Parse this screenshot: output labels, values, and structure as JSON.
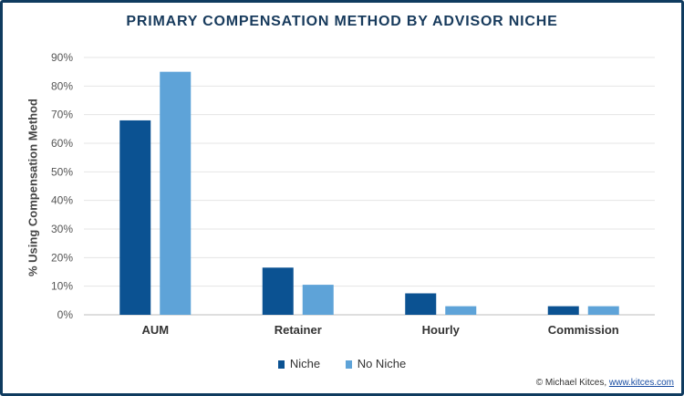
{
  "chart_data": {
    "type": "bar",
    "title": "PRIMARY COMPENSATION METHOD BY ADVISOR NICHE",
    "ylabel": "% Using Compensation Method",
    "xlabel": "",
    "categories": [
      "AUM",
      "Retainer",
      "Hourly",
      "Commission"
    ],
    "series": [
      {
        "name": "Niche",
        "color": "#0b5292",
        "values": [
          68,
          16.5,
          7.5,
          3
        ]
      },
      {
        "name": "No Niche",
        "color": "#5ea3d8",
        "values": [
          85,
          10.5,
          3,
          3
        ]
      }
    ],
    "ylim": [
      0,
      90
    ],
    "yticks": [
      "0%",
      "10%",
      "20%",
      "30%",
      "40%",
      "50%",
      "60%",
      "70%",
      "80%",
      "90%"
    ],
    "grid": true,
    "legend_position": "bottom"
  },
  "credit": {
    "prefix": "© Michael Kitces, ",
    "link_text": "www.kitces.com"
  }
}
